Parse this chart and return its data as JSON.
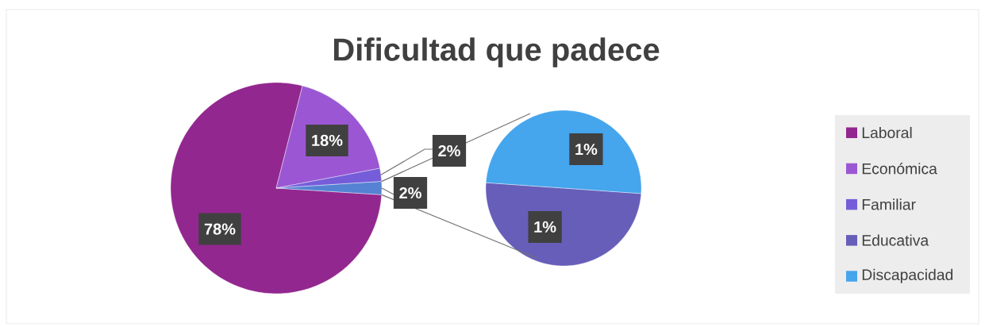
{
  "chart_data": [
    {
      "type": "pie",
      "title": "Dificultad que padece",
      "categories": [
        "Laboral",
        "Económica",
        "Familiar",
        null
      ],
      "values": [
        78,
        18,
        2,
        2
      ],
      "colors": [
        "#92278f",
        "#9b57d3",
        "#755dd9",
        "#5582d3"
      ],
      "value_labels": [
        "78%",
        "18%",
        "2%",
        "2%"
      ],
      "legend": "right"
    },
    {
      "type": "pie",
      "categories": [
        "Educativa",
        "Discapacidad"
      ],
      "values": [
        1,
        1
      ],
      "colors": [
        "#665eb8",
        "#45a5ed"
      ],
      "value_labels": [
        "1%",
        "1%"
      ],
      "legend": "right"
    }
  ]
}
